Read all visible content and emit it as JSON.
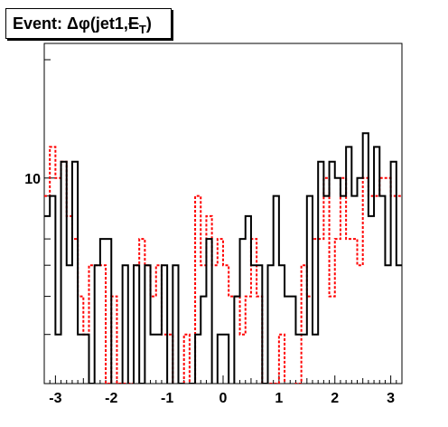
{
  "title": {
    "prefix": "Event: ",
    "symbol": "Δφ",
    "body": "(jet1,",
    "met": "E",
    "met_sub": "T",
    "suffix": ")"
  },
  "chart_data": {
    "type": "histogram-step",
    "title": "Event: Δφ(jet1,ET)",
    "xlabel": "",
    "ylabel": "",
    "xlim": [
      -3.2,
      3.2
    ],
    "ylog": true,
    "ylim": [
      3,
      22
    ],
    "grid": false,
    "legend": "none",
    "x_ticks": [
      -3,
      -2,
      -1,
      0,
      1,
      2,
      3
    ],
    "x_tick_labels": [
      "-3",
      "-2",
      "-1",
      "0",
      "1",
      "2",
      "3"
    ],
    "y_labeled_ticks": [
      10
    ],
    "y_labeled_tick_labels": [
      "10"
    ],
    "bin_edges": [
      -3.2,
      -3.1,
      -3.0,
      -2.9,
      -2.8,
      -2.7,
      -2.6,
      -2.5,
      -2.4,
      -2.3,
      -2.2,
      -2.1,
      -2.0,
      -1.9,
      -1.8,
      -1.7,
      -1.6,
      -1.5,
      -1.4,
      -1.3,
      -1.2,
      -1.1,
      -1.0,
      -0.9,
      -0.8,
      -0.7,
      -0.6,
      -0.5,
      -0.4,
      -0.3,
      -0.2,
      -0.1,
      0.0,
      0.1,
      0.2,
      0.3,
      0.4,
      0.5,
      0.6,
      0.7,
      0.8,
      0.9,
      1.0,
      1.1,
      1.2,
      1.3,
      1.4,
      1.5,
      1.6,
      1.7,
      1.8,
      1.9,
      2.0,
      2.1,
      2.2,
      2.3,
      2.4,
      2.5,
      2.6,
      2.7,
      2.8,
      2.9,
      3.0,
      3.1,
      3.2
    ],
    "series": [
      {
        "style": "solid",
        "color": "#000000",
        "values": [
          8,
          9,
          4,
          11,
          6,
          11,
          4,
          4,
          3,
          6,
          7,
          7,
          0,
          0,
          6,
          0,
          6,
          3,
          6,
          4,
          4,
          6,
          0,
          6,
          3,
          0,
          3,
          4,
          5,
          7,
          0,
          4,
          4,
          0,
          5,
          7,
          8,
          6,
          6,
          3,
          6,
          9,
          6,
          5,
          5,
          4,
          4,
          9,
          4,
          11,
          9,
          11,
          10,
          9,
          12,
          9,
          10,
          13,
          8,
          12,
          9,
          6,
          11,
          6
        ]
      },
      {
        "style": "dashed",
        "color": "#ff0000",
        "values": [
          9,
          12,
          10,
          11,
          8,
          7,
          5,
          4,
          6,
          6,
          6,
          3,
          5,
          3,
          3,
          3,
          6,
          7,
          6,
          5,
          6,
          4,
          4,
          0,
          0,
          4,
          3,
          9,
          6,
          8,
          6,
          7,
          6,
          5,
          5,
          4,
          5,
          7,
          5,
          0,
          3,
          3,
          4,
          2,
          2,
          3,
          6,
          5,
          7,
          7,
          10,
          5,
          7,
          10,
          7,
          7,
          6,
          10,
          9,
          9,
          10,
          10,
          9,
          9
        ]
      }
    ]
  }
}
